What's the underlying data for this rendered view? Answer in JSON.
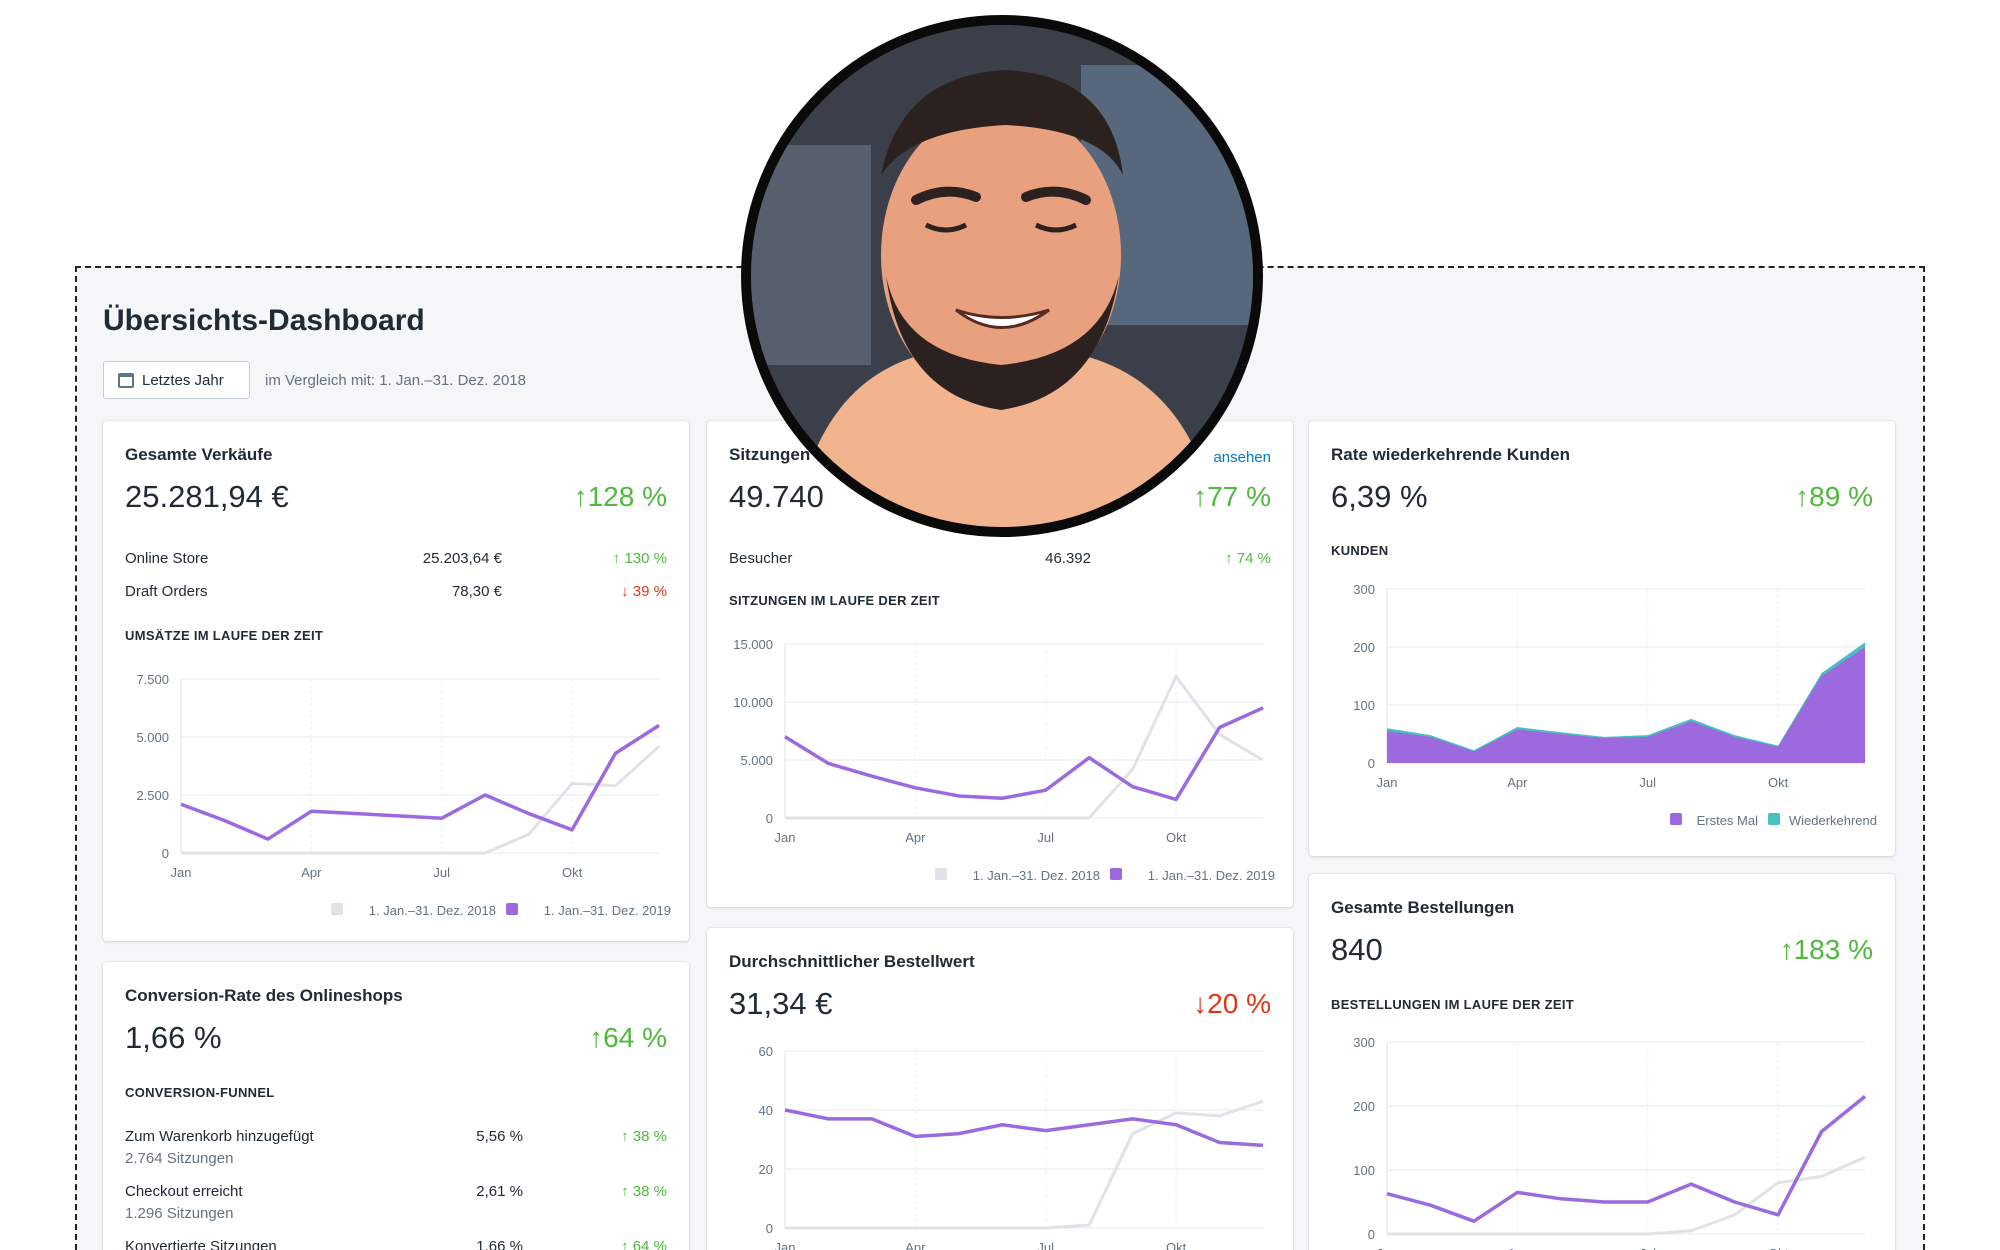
{
  "dashboard": {
    "title": "Übersichts-Dashboard",
    "period_button": "Letztes Jahr",
    "compare_text": "im Vergleich mit: 1. Jan.–31. Dez. 2018"
  },
  "colors": {
    "current": "#9c6ade",
    "previous": "#dfe3e8",
    "up": "#50b83c",
    "down": "#de3618",
    "returning": "#47c1bf"
  },
  "cards": {
    "sales": {
      "title": "Gesamte Verkäufe",
      "value": "25.281,94 €",
      "change": "↑128 %",
      "rows": [
        {
          "label": "Online Store",
          "value": "25.203,64 €",
          "change": "↑ 130 %"
        },
        {
          "label": "Draft Orders",
          "value": "78,30 €",
          "change": "↓ 39 %"
        }
      ],
      "section": "UMSÄTZE IM LAUFE DER ZEIT",
      "legend_prev": "1. Jan.–31. Dez. 2018",
      "legend_cur": "1. Jan.–31. Dez. 2019"
    },
    "sessions": {
      "title": "Sitzungen",
      "link": "ansehen",
      "value": "49.740",
      "change": "↑77 %",
      "rows": [
        {
          "label": "Besucher",
          "value": "46.392",
          "change": "↑ 74 %"
        }
      ],
      "section": "SITZUNGEN IM LAUFE DER ZEIT",
      "legend_prev": "1. Jan.–31. Dez. 2018",
      "legend_cur": "1. Jan.–31. Dez. 2019"
    },
    "returning": {
      "title": "Rate wiederkehrende Kunden",
      "value": "6,39 %",
      "change": "↑89 %",
      "section": "KUNDEN",
      "legend_first": "Erstes Mal",
      "legend_returning": "Wiederkehrend"
    },
    "conversion": {
      "title": "Conversion-Rate des Onlineshops",
      "value": "1,66 %",
      "change": "↑64 %",
      "section": "CONVERSION-FUNNEL",
      "rows": [
        {
          "label": "Zum Warenkorb hinzugefügt",
          "sub": "2.764 Sitzungen",
          "value": "5,56 %",
          "change": "↑ 38 %"
        },
        {
          "label": "Checkout erreicht",
          "sub": "1.296 Sitzungen",
          "value": "2,61 %",
          "change": "↑ 38 %"
        },
        {
          "label": "Konvertierte Sitzungen",
          "sub": "",
          "value": "1,66 %",
          "change": "↑ 64 %"
        }
      ]
    },
    "aov": {
      "title": "Durchschnittlicher Bestellwert",
      "value": "31,34 €",
      "change": "↓20 %"
    },
    "orders": {
      "title": "Gesamte Bestellungen",
      "value": "840",
      "change": "↑183 %",
      "section": "BESTELLUNGEN IM LAUFE DER ZEIT"
    }
  },
  "chart_data": [
    {
      "type": "line",
      "id": "sales",
      "x_ticks": [
        "Jan",
        "Apr",
        "Jul",
        "Okt"
      ],
      "y_ticks": [
        "7.500",
        "5.000",
        "2.500",
        "0"
      ],
      "ylim": [
        0,
        7500
      ],
      "series": [
        {
          "name": "1. Jan.–31. Dez. 2019",
          "values": [
            2100,
            1400,
            600,
            1800,
            1700,
            1600,
            1500,
            2500,
            1700,
            1000,
            4300,
            5500
          ]
        },
        {
          "name": "1. Jan.–31. Dez. 2018",
          "values": [
            0,
            0,
            0,
            0,
            0,
            0,
            0,
            0,
            800,
            3000,
            2900,
            4600
          ]
        }
      ]
    },
    {
      "type": "line",
      "id": "sessions",
      "x_ticks": [
        "Jan",
        "Apr",
        "Jul",
        "Okt"
      ],
      "y_ticks": [
        "15.000",
        "10.000",
        "5.000",
        "0"
      ],
      "ylim": [
        0,
        15000
      ],
      "series": [
        {
          "name": "1. Jan.–31. Dez. 2019",
          "values": [
            7000,
            4700,
            3600,
            2600,
            1900,
            1700,
            2400,
            5200,
            2700,
            1600,
            7800,
            9500
          ]
        },
        {
          "name": "1. Jan.–31. Dez. 2018",
          "values": [
            0,
            0,
            0,
            0,
            0,
            0,
            0,
            0,
            4200,
            12200,
            7200,
            5000
          ]
        }
      ]
    },
    {
      "type": "area",
      "id": "returning",
      "x_ticks": [
        "Jan",
        "Apr",
        "Jul",
        "Okt"
      ],
      "y_ticks": [
        "300",
        "200",
        "100",
        "0"
      ],
      "ylim": [
        0,
        300
      ],
      "series": [
        {
          "name": "Erstes Mal",
          "values": [
            55,
            45,
            20,
            58,
            50,
            43,
            45,
            72,
            45,
            28,
            150,
            200
          ]
        },
        {
          "name": "Wiederkehrend",
          "values": [
            5,
            3,
            2,
            4,
            3,
            2,
            3,
            4,
            3,
            2,
            5,
            8
          ]
        }
      ]
    },
    {
      "type": "line",
      "id": "aov",
      "x_ticks": [
        "Jan",
        "Apr",
        "Jul",
        "Okt"
      ],
      "y_ticks": [
        "60",
        "40",
        "20",
        "0"
      ],
      "ylim": [
        0,
        60
      ],
      "series": [
        {
          "name": "1. Jan.–31. Dez. 2019",
          "values": [
            40,
            37,
            37,
            31,
            32,
            35,
            33,
            35,
            37,
            35,
            29,
            28
          ]
        },
        {
          "name": "1. Jan.–31. Dez. 2018",
          "values": [
            0,
            0,
            0,
            0,
            0,
            0,
            0,
            1,
            32,
            39,
            38,
            43
          ]
        }
      ]
    },
    {
      "type": "line",
      "id": "orders",
      "x_ticks": [
        "Jan",
        "Apr",
        "Jul",
        "Okt"
      ],
      "y_ticks": [
        "300",
        "200",
        "100",
        "0"
      ],
      "ylim": [
        0,
        300
      ],
      "series": [
        {
          "name": "1. Jan.–31. Dez. 2019",
          "values": [
            63,
            45,
            20,
            65,
            55,
            50,
            50,
            78,
            50,
            30,
            160,
            215
          ]
        },
        {
          "name": "1. Jan.–31. Dez. 2018",
          "values": [
            0,
            0,
            0,
            0,
            0,
            0,
            0,
            5,
            30,
            80,
            90,
            120
          ]
        }
      ]
    }
  ]
}
